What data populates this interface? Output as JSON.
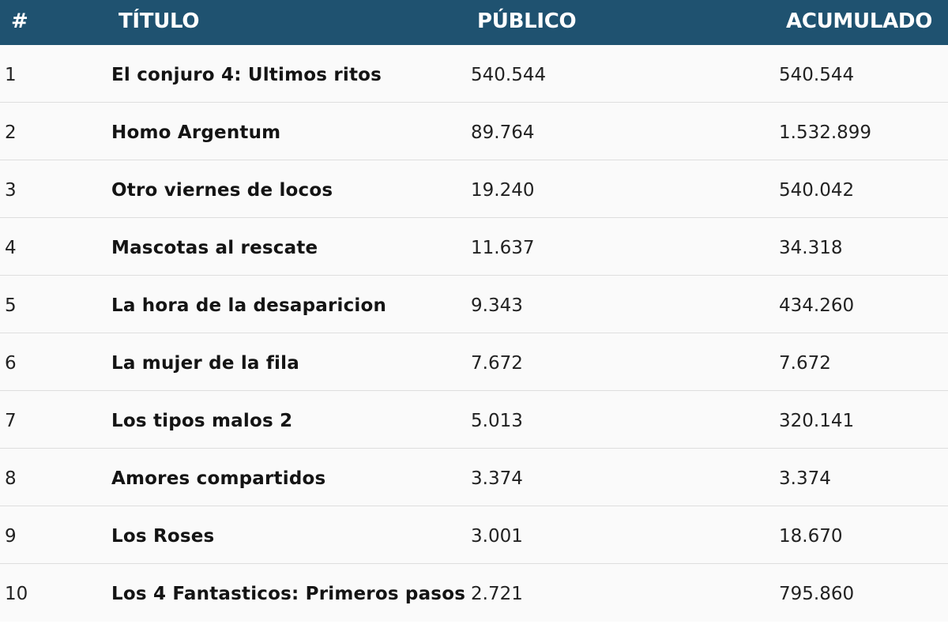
{
  "header": {
    "rank": "#",
    "title": "TÍTULO",
    "audience": "PÚBLICO",
    "cumulative": "ACUMULADO"
  },
  "rows": [
    {
      "rank": "1",
      "title": "El conjuro 4: Ultimos ritos",
      "audience": "540.544",
      "cumulative": "540.544"
    },
    {
      "rank": "2",
      "title": "Homo Argentum",
      "audience": "89.764",
      "cumulative": "1.532.899"
    },
    {
      "rank": "3",
      "title": "Otro viernes de locos",
      "audience": "19.240",
      "cumulative": "540.042"
    },
    {
      "rank": "4",
      "title": "Mascotas al rescate",
      "audience": "11.637",
      "cumulative": "34.318"
    },
    {
      "rank": "5",
      "title": "La hora de la desaparicion",
      "audience": "9.343",
      "cumulative": "434.260"
    },
    {
      "rank": "6",
      "title": "La mujer de la fila",
      "audience": "7.672",
      "cumulative": "7.672"
    },
    {
      "rank": "7",
      "title": "Los tipos malos 2",
      "audience": "5.013",
      "cumulative": "320.141"
    },
    {
      "rank": "8",
      "title": "Amores compartidos",
      "audience": "3.374",
      "cumulative": "3.374"
    },
    {
      "rank": "9",
      "title": "Los Roses",
      "audience": "3.001",
      "cumulative": "18.670"
    },
    {
      "rank": "10",
      "title": "Los 4 Fantasticos: Primeros pasos",
      "audience": "2.721",
      "cumulative": "795.860"
    }
  ],
  "colors": {
    "header_background": "#1f5270",
    "header_text": "#ffffff",
    "row_background": "#fafafa",
    "row_divider": "#dedede"
  }
}
